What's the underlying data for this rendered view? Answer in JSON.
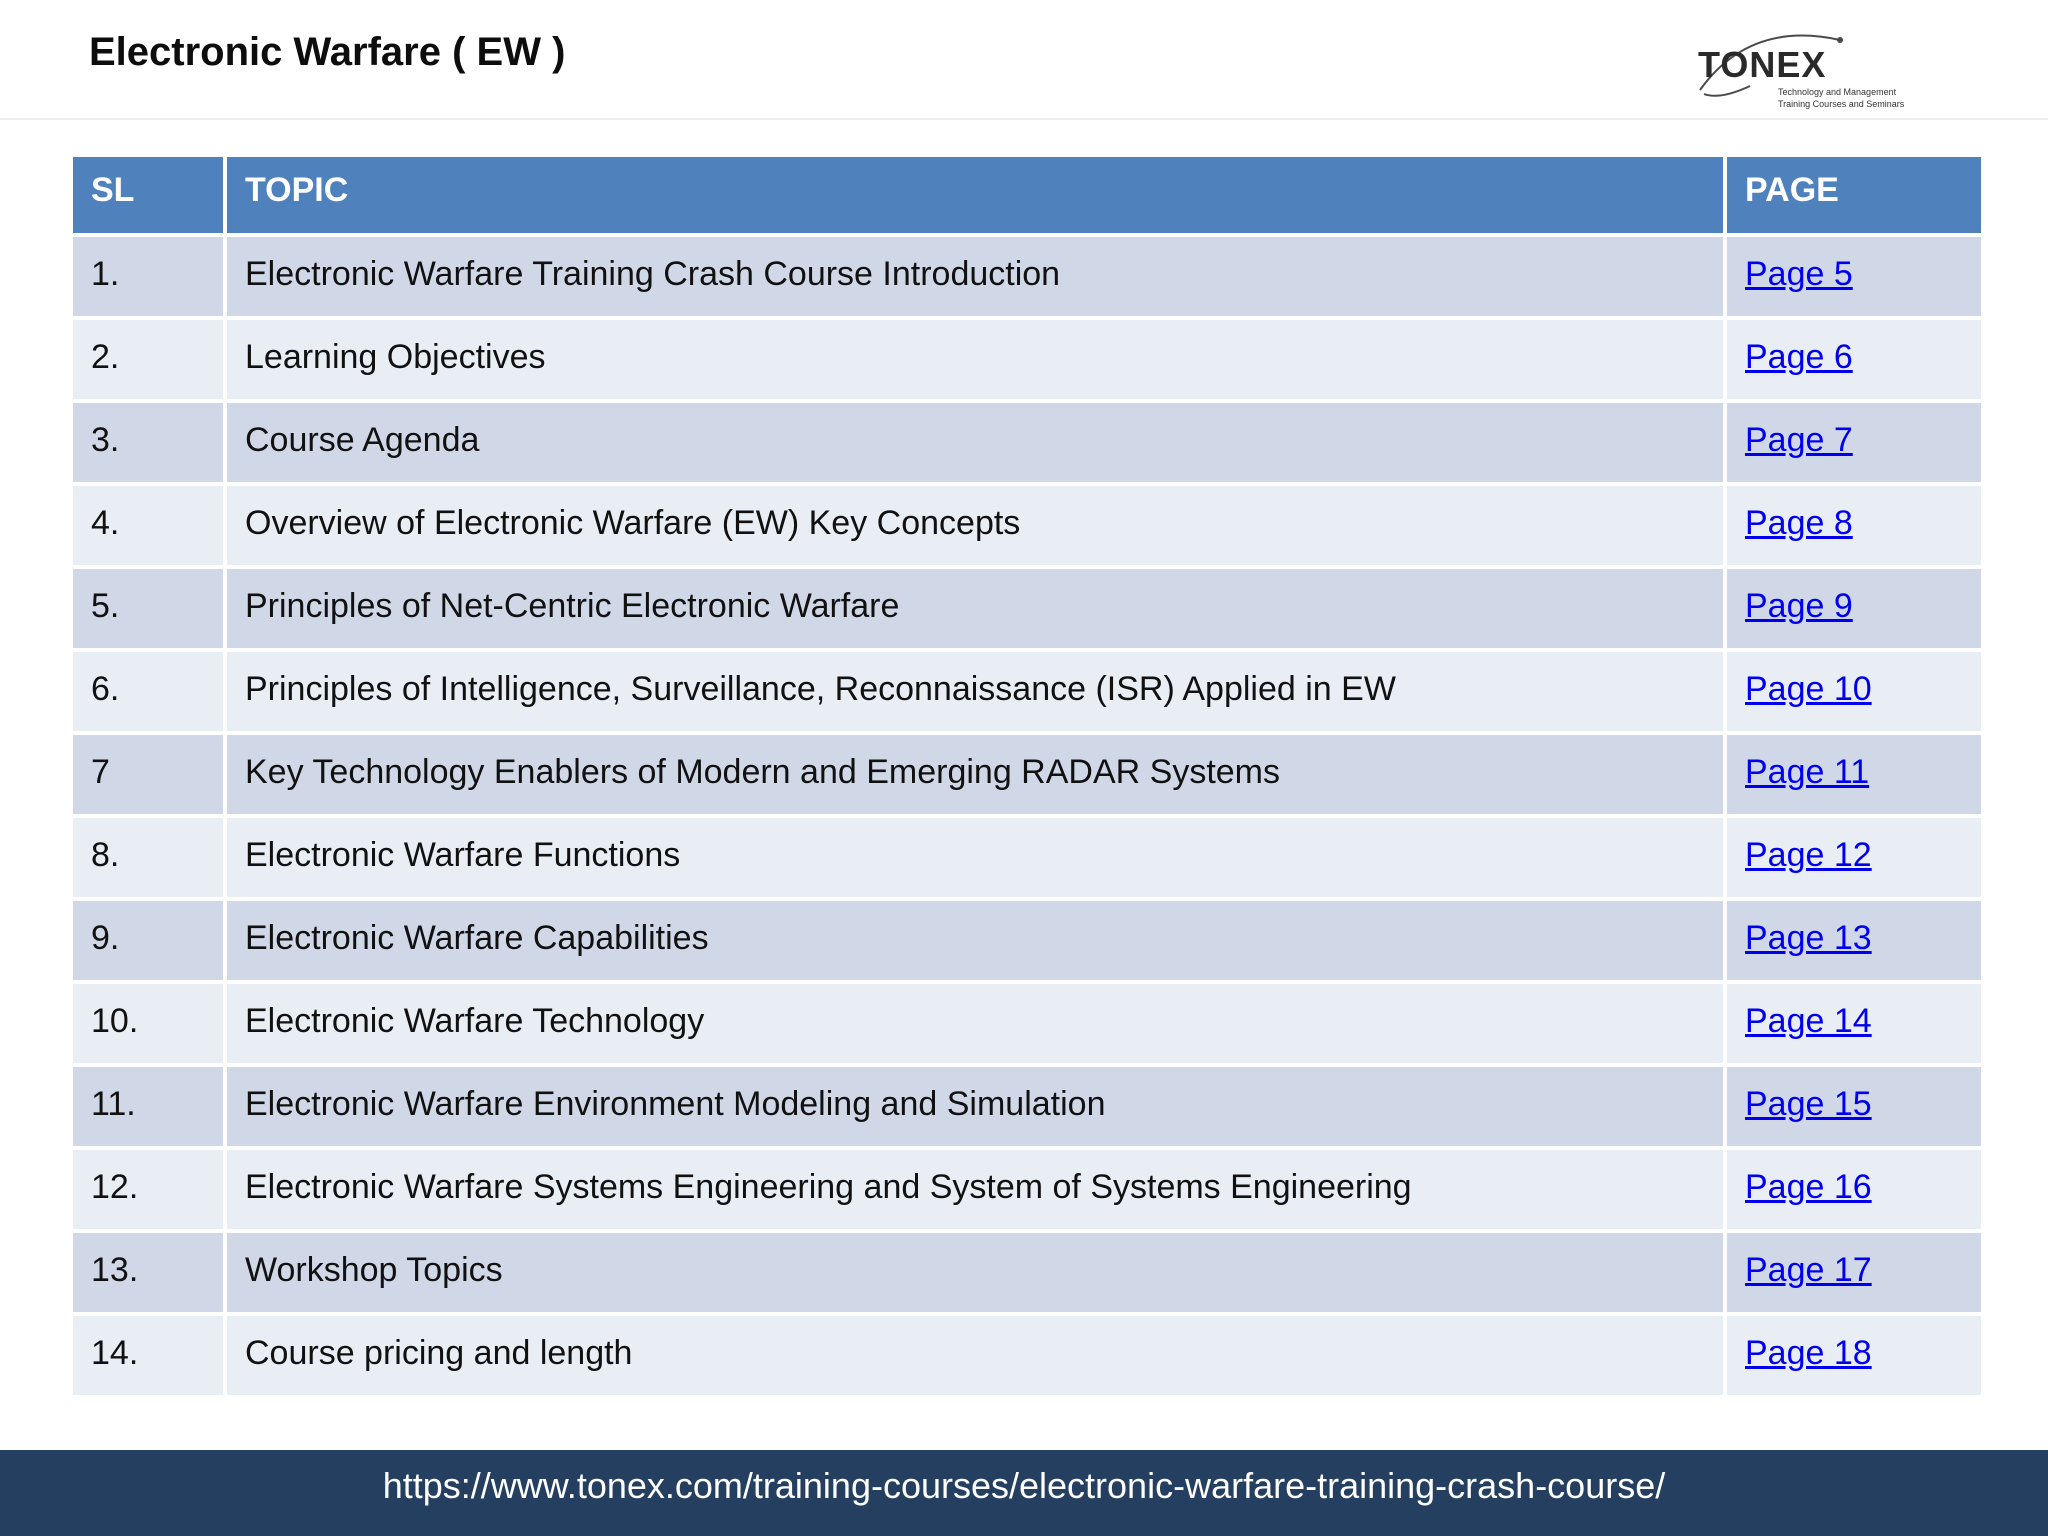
{
  "header": {
    "title": "Electronic Warfare ( EW )",
    "logo": {
      "word": "TONEX",
      "tagline_line1": "Technology and Management",
      "tagline_line2": "Training Courses and Seminars"
    }
  },
  "table": {
    "columns": [
      "SL",
      "TOPIC",
      "PAGE"
    ],
    "rows": [
      {
        "sl": "1.",
        "topic": "Electronic Warfare Training Crash Course Introduction",
        "page": "Page 5"
      },
      {
        "sl": "2.",
        "topic": "Learning Objectives",
        "page": "Page 6"
      },
      {
        "sl": "3.",
        "topic": "Course Agenda",
        "page": "Page 7"
      },
      {
        "sl": "4.",
        "topic": "Overview of Electronic Warfare (EW) Key Concepts",
        "page": "Page 8"
      },
      {
        "sl": "5.",
        "topic": "Principles of Net-Centric Electronic Warfare",
        "page": "Page 9"
      },
      {
        "sl": "6.",
        "topic": "Principles of Intelligence, Surveillance, Reconnaissance (ISR) Applied in EW",
        "page": "Page 10"
      },
      {
        "sl": "7",
        "topic": "Key Technology Enablers of Modern and Emerging RADAR Systems",
        "page": "Page 11"
      },
      {
        "sl": "8.",
        "topic": "Electronic Warfare Functions",
        "page": "Page 12"
      },
      {
        "sl": "9.",
        "topic": "Electronic Warfare Capabilities",
        "page": "Page 13"
      },
      {
        "sl": "10.",
        "topic": "Electronic Warfare Technology",
        "page": "Page 14"
      },
      {
        "sl": "11.",
        "topic": "Electronic Warfare Environment Modeling and Simulation",
        "page": "Page 15"
      },
      {
        "sl": "12.",
        "topic": "Electronic Warfare Systems Engineering and System of Systems Engineering",
        "page": "Page 16"
      },
      {
        "sl": "13.",
        "topic": "Workshop Topics",
        "page": "Page 17"
      },
      {
        "sl": "14.",
        "topic": "Course pricing and length",
        "page": "Page 18"
      }
    ]
  },
  "footer": {
    "url": "https://www.tonex.com/training-courses/electronic-warfare-training-crash-course/"
  },
  "colors": {
    "header_row": "#4f81bd",
    "row_odd": "#d0d8e8",
    "row_even": "#e9edf4",
    "link": "#0000ee",
    "footer_bg": "#243f60"
  }
}
